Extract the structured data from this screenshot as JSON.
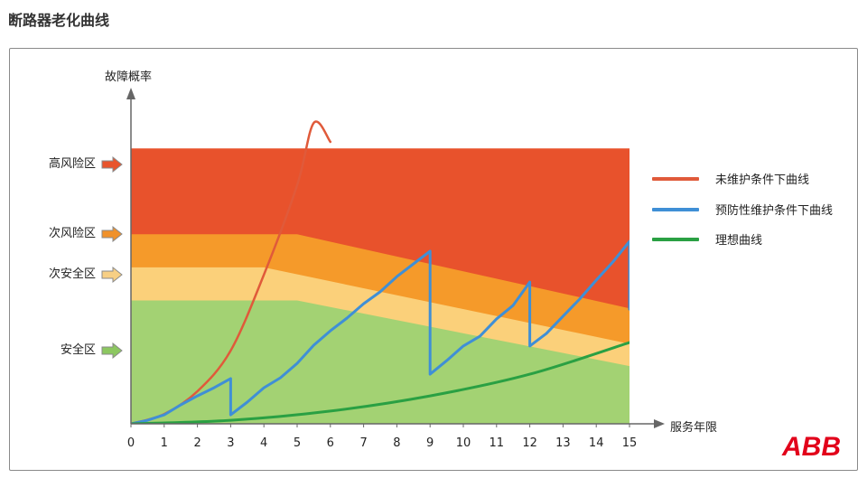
{
  "page_title": "断路器老化曲线",
  "logo_text": "ABB",
  "colors": {
    "high_risk": "#e8522c",
    "sub_risk": "#f59a2a",
    "sub_safe": "#fbd07a",
    "safe": "#a3d273",
    "unmaintained": "#e05a3a",
    "preventive": "#3f8fd6",
    "ideal": "#2aa043"
  },
  "zones": [
    {
      "label": "高风险区",
      "arrow_color": "#e8542c"
    },
    {
      "label": "次风险区",
      "arrow_color": "#f0912a"
    },
    {
      "label": "次安全区",
      "arrow_color": "#f7cf84"
    },
    {
      "label": "安全区",
      "arrow_color": "#8cc760"
    }
  ],
  "chart_data": {
    "type": "line",
    "title": "断路器老化曲线",
    "xlabel": "服务年限",
    "ylabel": "故障概率",
    "xlim": [
      0,
      15
    ],
    "ylim": [
      0,
      100
    ],
    "xticks": [
      "0",
      "1",
      "2",
      "3",
      "4",
      "5",
      "6",
      "7",
      "8",
      "9",
      "10",
      "11",
      "12",
      "13",
      "14",
      "15"
    ],
    "y_ticks_shown": false,
    "legend_position": "right",
    "bands": [
      {
        "name": "安全区",
        "upper": [
          [
            0,
            45.5
          ],
          [
            5,
            45.5
          ],
          [
            15,
            21.3
          ]
        ]
      },
      {
        "name": "次安全区",
        "upper": [
          [
            0,
            57.7
          ],
          [
            4,
            57.7
          ],
          [
            15,
            29.5
          ]
        ]
      },
      {
        "name": "次风险区",
        "upper": [
          [
            0,
            69.9
          ],
          [
            5,
            69.9
          ],
          [
            15,
            42.6
          ]
        ]
      },
      {
        "name": "高风险区",
        "upper": [
          [
            0,
            101.6
          ],
          [
            15,
            101.6
          ]
        ]
      }
    ],
    "series": [
      {
        "name": "未维护条件下曲线",
        "color": "#e05a3a",
        "x": [
          0,
          1,
          2,
          3,
          4,
          5,
          5.5,
          6
        ],
        "y": [
          0,
          3.6,
          12,
          27,
          55,
          88,
          111,
          104
        ]
      },
      {
        "name": "预防性维护条件下曲线",
        "color": "#3f8fd6",
        "x": [
          0,
          0.5,
          1,
          1.5,
          2,
          2.5,
          3,
          3,
          3.5,
          4,
          4.5,
          5,
          5.5,
          6,
          6.5,
          7,
          7.5,
          8,
          8.5,
          9,
          9,
          9.5,
          10,
          10.5,
          11,
          11.5,
          12,
          12,
          12.5,
          13,
          13.5,
          14,
          14.5,
          15,
          15
        ],
        "y": [
          0,
          1.3,
          3.3,
          7,
          10.3,
          13.3,
          16.7,
          3.3,
          8,
          13.3,
          17,
          22.3,
          29,
          34.3,
          39,
          44.3,
          48.7,
          54.3,
          59,
          63.7,
          18.3,
          23.3,
          28.7,
          32.3,
          38.7,
          43.7,
          52.3,
          28.7,
          33.3,
          39.7,
          46,
          53,
          59.7,
          67.3,
          42.3
        ]
      },
      {
        "name": "理想曲线",
        "color": "#2aa043",
        "x": [
          0,
          3,
          6,
          9,
          12,
          15
        ],
        "y": [
          0,
          1.3,
          4.7,
          10.3,
          18.3,
          30
        ]
      }
    ]
  },
  "legend": [
    {
      "label": "未维护条件下曲线",
      "color": "#e05a3a"
    },
    {
      "label": "预防性维护条件下曲线",
      "color": "#3f8fd6"
    },
    {
      "label": "理想曲线",
      "color": "#2aa043"
    }
  ]
}
